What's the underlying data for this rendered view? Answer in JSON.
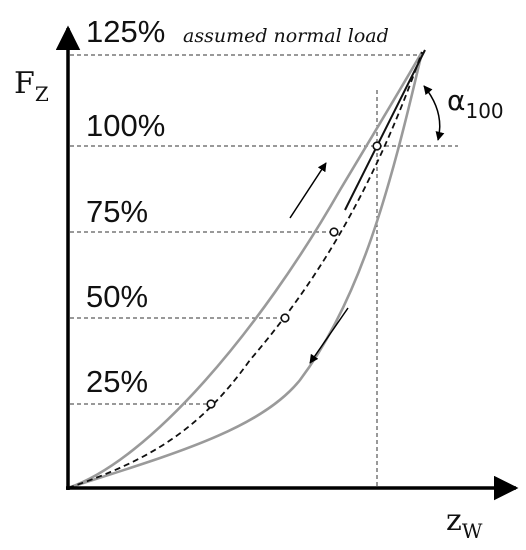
{
  "y_axis": {
    "symbol": "F",
    "subscript": "Z"
  },
  "x_axis": {
    "symbol": "z",
    "subscript": "W"
  },
  "load_levels": [
    {
      "label": "25%",
      "fraction": 0.25
    },
    {
      "label": "50%",
      "fraction": 0.5
    },
    {
      "label": "75%",
      "fraction": 0.75
    },
    {
      "label": "100%",
      "fraction": 1.0
    },
    {
      "label": "125%",
      "fraction": 1.25
    }
  ],
  "annotation": "assumed normal load",
  "angle_label": {
    "symbol": "α",
    "subscript": "100"
  }
}
